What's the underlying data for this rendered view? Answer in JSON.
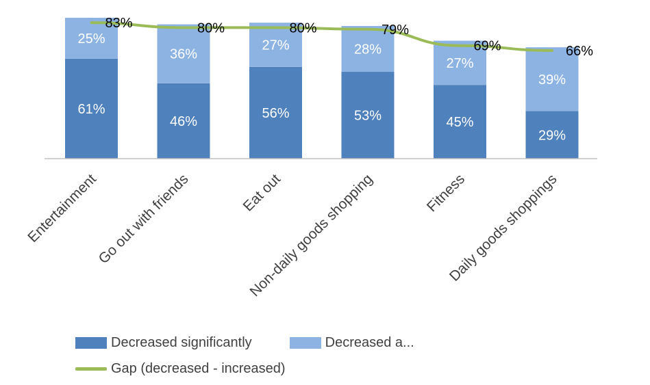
{
  "chart_data": {
    "type": "bar",
    "stacked": true,
    "categories": [
      "Entertainment",
      "Go out with friends",
      "Eat out",
      "Non-daily goods shopping",
      "Fitness",
      "Daily goods shoppings"
    ],
    "series": [
      {
        "name": "Decreased significantly",
        "values": [
          61,
          46,
          56,
          53,
          45,
          29
        ],
        "labels": [
          "61%",
          "46%",
          "56%",
          "53%",
          "45%",
          "29%"
        ],
        "color": "#4f81bd"
      },
      {
        "name": "Decreased a...",
        "values": [
          25,
          36,
          27,
          28,
          27,
          39
        ],
        "labels": [
          "25%",
          "36%",
          "27%",
          "28%",
          "27%",
          "39%"
        ],
        "color": "#8db3e2"
      }
    ],
    "line_series": {
      "name": "Gap (decreased - increased)",
      "values": [
        83,
        80,
        80,
        79,
        69,
        66
      ],
      "labels": [
        "83%",
        "80%",
        "80%",
        "79%",
        "69%",
        "66%"
      ],
      "color": "#9bbb59"
    },
    "ylim": [
      0,
      100
    ],
    "grid": false,
    "legend_position": "bottom"
  },
  "legend": {
    "item1": "Decreased significantly",
    "item2": "Decreased a...",
    "item3": "Gap (decreased - increased)"
  }
}
